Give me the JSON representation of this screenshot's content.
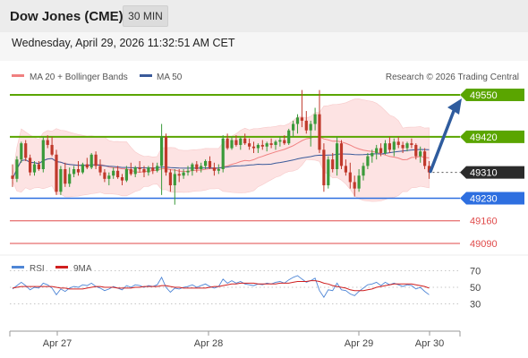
{
  "header": {
    "title": "Dow Jones (CME)",
    "timeframe": "30 MIN",
    "datetime": "Wednesday, April 29, 2026 11:32:51 AM CET"
  },
  "legend": {
    "ma20_label": "MA 20 + Bollinger Bands",
    "ma50_label": "MA 50",
    "copyright": "Research © 2026 Trading Central"
  },
  "rsi_legend": {
    "rsi_label": "RSI",
    "ma9_label": "9MA"
  },
  "colors": {
    "up": "#3a9a3a",
    "down": "#c0392b",
    "resistance": "#5aa500",
    "support": "#2e6fe0",
    "target": "#e04a4a",
    "current": "#2b2b2b",
    "ma20": "#f08080",
    "ma50": "#3a5a9a",
    "band": "#fde3e3",
    "arrow": "#2f5c9e",
    "rsi": "#4f86d6",
    "ma9": "#d02020"
  },
  "chart_data": [
    {
      "type": "candlestick",
      "x_ticks": [
        "Apr 27",
        "Apr 28",
        "Apr 29",
        "Apr 30"
      ],
      "ylim": [
        49050,
        49580
      ],
      "levels": [
        {
          "value": 49550,
          "label": "49550",
          "kind": "resistance"
        },
        {
          "value": 49420,
          "label": "49420",
          "kind": "resistance"
        },
        {
          "value": 49310,
          "label": "49310",
          "kind": "current"
        },
        {
          "value": 49230,
          "label": "49230",
          "kind": "support"
        },
        {
          "value": 49160,
          "label": "49160",
          "kind": "target"
        },
        {
          "value": 49090,
          "label": "49090",
          "kind": "target"
        }
      ],
      "forecast": {
        "from": 49310,
        "to": 49550,
        "direction": "up"
      },
      "series": [
        {
          "name": "MA 20 + Bollinger Bands"
        },
        {
          "name": "MA 50"
        }
      ],
      "ohlc": [
        [
          49300,
          49335,
          49265,
          49290
        ],
        [
          49290,
          49360,
          49280,
          49350
        ],
        [
          49350,
          49405,
          49340,
          49400
        ],
        [
          49400,
          49410,
          49345,
          49355
        ],
        [
          49355,
          49365,
          49300,
          49310
        ],
        [
          49310,
          49345,
          49300,
          49335
        ],
        [
          49335,
          49345,
          49315,
          49320
        ],
        [
          49320,
          49420,
          49310,
          49410
        ],
        [
          49410,
          49425,
          49385,
          49395
        ],
        [
          49395,
          49420,
          49360,
          49365
        ],
        [
          49365,
          49380,
          49240,
          49250
        ],
        [
          49250,
          49330,
          49240,
          49320
        ],
        [
          49320,
          49340,
          49265,
          49275
        ],
        [
          49275,
          49325,
          49265,
          49305
        ],
        [
          49305,
          49330,
          49295,
          49320
        ],
        [
          49320,
          49345,
          49300,
          49310
        ],
        [
          49310,
          49340,
          49305,
          49335
        ],
        [
          49335,
          49355,
          49320,
          49325
        ],
        [
          49325,
          49370,
          49320,
          49365
        ],
        [
          49365,
          49375,
          49320,
          49330
        ],
        [
          49330,
          49350,
          49300,
          49310
        ],
        [
          49310,
          49320,
          49280,
          49290
        ],
        [
          49290,
          49310,
          49270,
          49300
        ],
        [
          49300,
          49325,
          49290,
          49315
        ],
        [
          49315,
          49330,
          49290,
          49295
        ],
        [
          49295,
          49305,
          49270,
          49285
        ],
        [
          49285,
          49330,
          49280,
          49320
        ],
        [
          49320,
          49340,
          49300,
          49305
        ],
        [
          49305,
          49330,
          49295,
          49325
        ],
        [
          49325,
          49345,
          49310,
          49320
        ],
        [
          49320,
          49330,
          49295,
          49310
        ],
        [
          49310,
          49330,
          49300,
          49325
        ],
        [
          49325,
          49340,
          49305,
          49315
        ],
        [
          49315,
          49340,
          49310,
          49330
        ],
        [
          49330,
          49460,
          49240,
          49420
        ],
        [
          49420,
          49430,
          49300,
          49310
        ],
        [
          49310,
          49320,
          49250,
          49270
        ],
        [
          49270,
          49320,
          49210,
          49305
        ],
        [
          49305,
          49320,
          49280,
          49300
        ],
        [
          49300,
          49320,
          49290,
          49310
        ],
        [
          49310,
          49330,
          49300,
          49315
        ],
        [
          49315,
          49340,
          49300,
          49335
        ],
        [
          49335,
          49345,
          49310,
          49320
        ],
        [
          49320,
          49340,
          49310,
          49330
        ],
        [
          49330,
          49350,
          49320,
          49345
        ],
        [
          49345,
          49360,
          49320,
          49325
        ],
        [
          49325,
          49340,
          49300,
          49315
        ],
        [
          49315,
          49335,
          49305,
          49320
        ],
        [
          49320,
          49425,
          49310,
          49415
        ],
        [
          49415,
          49430,
          49380,
          49385
        ],
        [
          49385,
          49420,
          49380,
          49410
        ],
        [
          49410,
          49425,
          49390,
          49395
        ],
        [
          49395,
          49420,
          49380,
          49415
        ],
        [
          49415,
          49430,
          49395,
          49400
        ],
        [
          49400,
          49415,
          49380,
          49390
        ],
        [
          49390,
          49405,
          49370,
          49385
        ],
        [
          49385,
          49400,
          49370,
          49395
        ],
        [
          49395,
          49410,
          49380,
          49390
        ],
        [
          49390,
          49405,
          49375,
          49400
        ],
        [
          49400,
          49415,
          49385,
          49395
        ],
        [
          49395,
          49410,
          49380,
          49405
        ],
        [
          49405,
          49420,
          49390,
          49410
        ],
        [
          49410,
          49425,
          49395,
          49400
        ],
        [
          49400,
          49445,
          49395,
          49440
        ],
        [
          49440,
          49470,
          49420,
          49460
        ],
        [
          49460,
          49490,
          49430,
          49480
        ],
        [
          49480,
          49565,
          49450,
          49470
        ],
        [
          49470,
          49500,
          49430,
          49440
        ],
        [
          49440,
          49470,
          49390,
          49460
        ],
        [
          49460,
          49510,
          49440,
          49490
        ],
        [
          49490,
          49565,
          49370,
          49380
        ],
        [
          49380,
          49400,
          49250,
          49270
        ],
        [
          49270,
          49360,
          49260,
          49350
        ],
        [
          49350,
          49370,
          49310,
          49320
        ],
        [
          49320,
          49420,
          49300,
          49400
        ],
        [
          49400,
          49410,
          49320,
          49330
        ],
        [
          49330,
          49350,
          49300,
          49310
        ],
        [
          49310,
          49340,
          49260,
          49280
        ],
        [
          49280,
          49300,
          49235,
          49260
        ],
        [
          49260,
          49320,
          49250,
          49300
        ],
        [
          49300,
          49340,
          49285,
          49330
        ],
        [
          49330,
          49370,
          49320,
          49360
        ],
        [
          49360,
          49380,
          49340,
          49370
        ],
        [
          49370,
          49395,
          49350,
          49385
        ],
        [
          49385,
          49400,
          49360,
          49370
        ],
        [
          49370,
          49410,
          49365,
          49400
        ],
        [
          49400,
          49420,
          49370,
          49380
        ],
        [
          49380,
          49415,
          49360,
          49405
        ],
        [
          49405,
          49420,
          49385,
          49395
        ],
        [
          49395,
          49405,
          49370,
          49385
        ],
        [
          49385,
          49405,
          49375,
          49400
        ],
        [
          49400,
          49415,
          49385,
          49395
        ],
        [
          49395,
          49400,
          49350,
          49360
        ],
        [
          49360,
          49390,
          49340,
          49375
        ],
        [
          49375,
          49385,
          49320,
          49330
        ],
        [
          49330,
          49345,
          49290,
          49310
        ]
      ]
    },
    {
      "type": "line",
      "title": "RSI",
      "ylim": [
        25,
        75
      ],
      "y_ticks": [
        "70",
        "50",
        "30"
      ],
      "series": [
        {
          "name": "RSI",
          "values": [
            48,
            52,
            56,
            52,
            47,
            50,
            49,
            55,
            53,
            49,
            41,
            48,
            45,
            49,
            51,
            50,
            53,
            52,
            55,
            51,
            49,
            46,
            48,
            51,
            49,
            47,
            52,
            50,
            53,
            52,
            50,
            52,
            51,
            53,
            62,
            50,
            44,
            49,
            48,
            50,
            51,
            53,
            50,
            52,
            54,
            51,
            49,
            51,
            60,
            55,
            58,
            55,
            57,
            54,
            53,
            52,
            54,
            53,
            55,
            54,
            56,
            57,
            55,
            59,
            62,
            64,
            60,
            56,
            58,
            61,
            46,
            38,
            47,
            46,
            55,
            47,
            46,
            42,
            40,
            45,
            49,
            53,
            54,
            56,
            52,
            56,
            53,
            55,
            53,
            51,
            53,
            52,
            48,
            50,
            45,
            41
          ]
        },
        {
          "name": "9MA",
          "values": [
            49,
            50,
            51,
            51,
            51,
            51,
            51,
            51,
            51,
            51,
            50,
            49,
            49,
            48,
            48,
            48,
            48,
            49,
            50,
            51,
            51,
            50,
            50,
            50,
            49,
            49,
            49,
            49,
            50,
            50,
            51,
            51,
            51,
            51,
            52,
            52,
            51,
            50,
            50,
            49,
            49,
            49,
            49,
            49,
            49,
            50,
            51,
            51,
            52,
            53,
            54,
            54,
            55,
            55,
            55,
            55,
            54,
            54,
            54,
            54,
            54,
            55,
            55,
            55,
            56,
            57,
            57,
            57,
            58,
            58,
            57,
            55,
            54,
            52,
            51,
            50,
            49,
            47,
            46,
            46,
            46,
            47,
            48,
            50,
            51,
            52,
            53,
            54,
            54,
            54,
            54,
            54,
            53,
            52,
            51,
            49
          ]
        }
      ]
    }
  ]
}
